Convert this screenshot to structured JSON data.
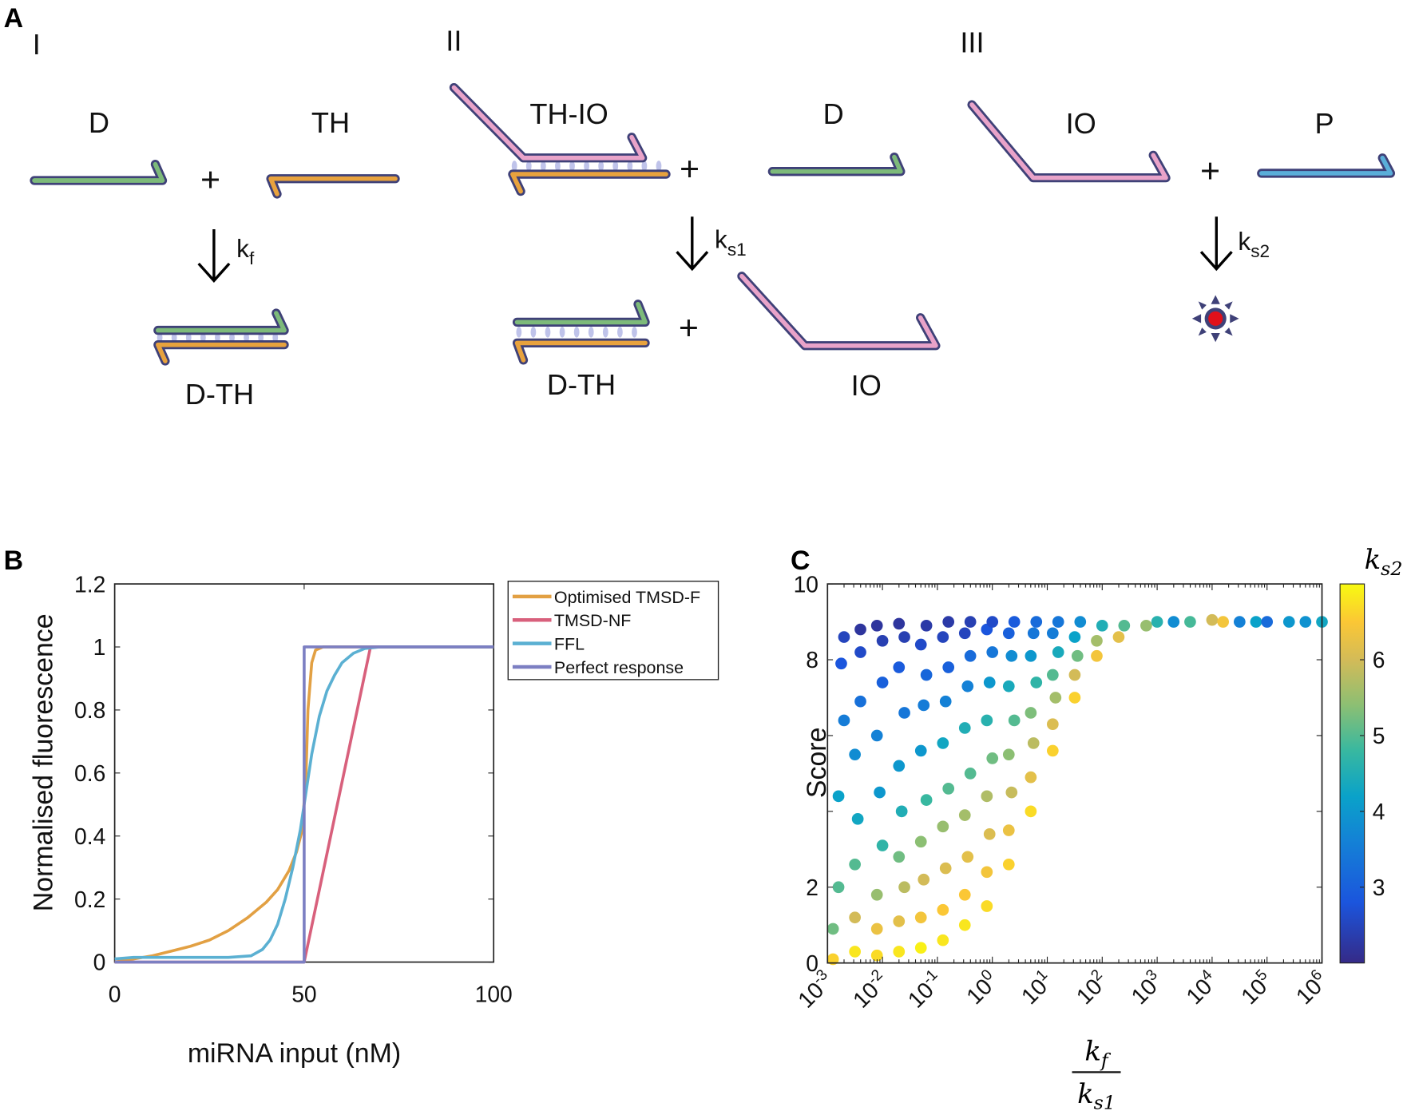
{
  "panels": {
    "a": "A",
    "b": "B",
    "c": "C"
  },
  "diagram": {
    "steps": [
      "I",
      "II",
      "III"
    ],
    "species": {
      "d1": "D",
      "th": "TH",
      "dth1": "D-TH",
      "thio": "TH-IO",
      "d2": "D",
      "io2": "IO",
      "dth2": "D-TH",
      "io3": "IO",
      "p": "P"
    },
    "plus": "+",
    "rates": [
      {
        "base": "k",
        "sub": "f"
      },
      {
        "base": "k",
        "sub": "s1"
      },
      {
        "base": "k",
        "sub": "s2"
      }
    ],
    "colors": {
      "outline": "#3f4178",
      "D": "#7dba7a",
      "TH": "#e8a23d",
      "IO": "#e9a3c9",
      "P": "#5aaed9",
      "pairs": "#bfc3ea",
      "reporter": "#e0101a"
    }
  },
  "chart_data": [
    {
      "type": "line",
      "panel": "B",
      "xlabel": "miRNA input (nM)",
      "ylabel": "Normalised fluorescence",
      "xlim": [
        0,
        100
      ],
      "ylim": [
        0,
        1.2
      ],
      "xticks": [
        "0",
        "50",
        "100"
      ],
      "xtick_values": [
        0,
        50,
        100
      ],
      "yticks": [
        "0",
        "0.2",
        "0.4",
        "0.6",
        "0.8",
        "1",
        "1.2"
      ],
      "ytick_values": [
        0,
        0.2,
        0.4,
        0.6,
        0.8,
        1,
        1.2
      ],
      "legend_position": "outside-top-right",
      "series": [
        {
          "name": "Optimised TMSD-F",
          "color": "#e2a043",
          "x": [
            0,
            5,
            10,
            15,
            20,
            25,
            30,
            35,
            40,
            43,
            46,
            48,
            49.5,
            50.5,
            51,
            52,
            53,
            55,
            100
          ],
          "y": [
            0,
            0.01,
            0.02,
            0.035,
            0.05,
            0.07,
            0.1,
            0.14,
            0.19,
            0.23,
            0.29,
            0.35,
            0.42,
            0.6,
            0.8,
            0.95,
            0.99,
            1,
            1
          ]
        },
        {
          "name": "TMSD-NF",
          "color": "#d8607c",
          "x": [
            0,
            50,
            67.5,
            100
          ],
          "y": [
            0,
            0,
            1,
            1
          ]
        },
        {
          "name": "FFL",
          "color": "#5bb0d2",
          "x": [
            0,
            5,
            10,
            20,
            30,
            36,
            39,
            41,
            43,
            45,
            47,
            49,
            50,
            52,
            54,
            56,
            58,
            60,
            63,
            66,
            70,
            100
          ],
          "y": [
            0.01,
            0.015,
            0.015,
            0.015,
            0.015,
            0.02,
            0.04,
            0.07,
            0.12,
            0.2,
            0.3,
            0.42,
            0.5,
            0.66,
            0.78,
            0.86,
            0.91,
            0.95,
            0.98,
            0.995,
            1,
            1
          ]
        },
        {
          "name": "Perfect response",
          "color": "#7c7fc2",
          "x": [
            0,
            50,
            50,
            100
          ],
          "y": [
            0,
            0,
            1,
            1
          ]
        }
      ]
    },
    {
      "type": "scatter",
      "panel": "C",
      "xlabel_num": {
        "base": "k",
        "sub": "f"
      },
      "xlabel_den": {
        "base": "k",
        "sub": "s1"
      },
      "ylabel": "Score",
      "xscale": "log",
      "xlim_log10": [
        -3,
        6
      ],
      "ylim": [
        0,
        10
      ],
      "xtick_base": "10",
      "xtick_exponents": [
        "-3",
        "-2",
        "-1",
        "0",
        "1",
        "2",
        "3",
        "4",
        "5",
        "6"
      ],
      "yticks": [
        "0",
        "2",
        "8",
        "10"
      ],
      "ytick_values": [
        0,
        2,
        8,
        10
      ],
      "yminor_ticks": [
        4,
        6
      ],
      "colorbar": {
        "label": {
          "base": "k",
          "sub": "s2"
        },
        "range": [
          2,
          7
        ],
        "ticks": [
          "3",
          "4",
          "5",
          "6"
        ],
        "tick_values": [
          3,
          4,
          5,
          6
        ],
        "colormap": [
          [
            2,
            "#352a87"
          ],
          [
            2.8,
            "#1b55dd"
          ],
          [
            3.6,
            "#1481d6"
          ],
          [
            4.2,
            "#0aa2c9"
          ],
          [
            4.8,
            "#38b8a0"
          ],
          [
            5.4,
            "#8cbf73"
          ],
          [
            6.0,
            "#d3bb58"
          ],
          [
            6.5,
            "#fbc735"
          ],
          [
            7,
            "#f8fa10"
          ]
        ]
      },
      "point_fields": [
        "log10_kf_over_ks1",
        "score",
        "ks2"
      ],
      "points": [
        [
          -2.9,
          0.1,
          6.6
        ],
        [
          -2.9,
          0.9,
          5.2
        ],
        [
          -2.8,
          2.0,
          5.0
        ],
        [
          -2.8,
          4.4,
          4.2
        ],
        [
          -2.7,
          8.6,
          2.5
        ],
        [
          -2.7,
          6.4,
          3.5
        ],
        [
          -2.75,
          7.9,
          2.8
        ],
        [
          -2.5,
          0.3,
          6.8
        ],
        [
          -2.5,
          1.2,
          6.0
        ],
        [
          -2.5,
          2.6,
          5.0
        ],
        [
          -2.45,
          3.8,
          4.3
        ],
        [
          -2.5,
          5.5,
          3.8
        ],
        [
          -2.4,
          6.9,
          3.3
        ],
        [
          -2.4,
          8.2,
          2.6
        ],
        [
          -2.4,
          8.8,
          2.2
        ],
        [
          -2.1,
          0.2,
          6.7
        ],
        [
          -2.1,
          0.9,
          6.3
        ],
        [
          -2.1,
          1.8,
          5.5
        ],
        [
          -2.0,
          3.1,
          4.7
        ],
        [
          -2.05,
          4.5,
          4.0
        ],
        [
          -2.1,
          6.0,
          3.6
        ],
        [
          -2.0,
          7.4,
          3.0
        ],
        [
          -2.0,
          8.5,
          2.4
        ],
        [
          -2.1,
          8.9,
          2.2
        ],
        [
          -1.7,
          0.3,
          6.8
        ],
        [
          -1.7,
          1.1,
          6.2
        ],
        [
          -1.6,
          2.0,
          5.8
        ],
        [
          -1.7,
          2.8,
          5.2
        ],
        [
          -1.65,
          4.0,
          4.5
        ],
        [
          -1.7,
          5.2,
          4.0
        ],
        [
          -1.6,
          6.6,
          3.4
        ],
        [
          -1.7,
          7.8,
          2.9
        ],
        [
          -1.6,
          8.6,
          2.4
        ],
        [
          -1.7,
          8.95,
          2.2
        ],
        [
          -1.3,
          0.4,
          6.9
        ],
        [
          -1.3,
          1.2,
          6.4
        ],
        [
          -1.25,
          2.2,
          6.0
        ],
        [
          -1.3,
          3.2,
          5.4
        ],
        [
          -1.2,
          4.3,
          4.8
        ],
        [
          -1.3,
          5.6,
          4.0
        ],
        [
          -1.25,
          6.8,
          3.5
        ],
        [
          -1.2,
          7.6,
          3.1
        ],
        [
          -1.3,
          8.4,
          2.6
        ],
        [
          -1.2,
          8.9,
          2.3
        ],
        [
          -0.9,
          0.6,
          6.8
        ],
        [
          -0.9,
          1.4,
          6.5
        ],
        [
          -0.85,
          2.5,
          6.1
        ],
        [
          -0.9,
          3.6,
          5.5
        ],
        [
          -0.8,
          4.6,
          5.0
        ],
        [
          -0.9,
          5.8,
          4.3
        ],
        [
          -0.85,
          6.9,
          3.6
        ],
        [
          -0.8,
          7.8,
          3.0
        ],
        [
          -0.9,
          8.6,
          2.5
        ],
        [
          -0.8,
          9.0,
          2.3
        ],
        [
          -0.5,
          1.0,
          6.8
        ],
        [
          -0.5,
          1.8,
          6.5
        ],
        [
          -0.45,
          2.8,
          6.2
        ],
        [
          -0.5,
          3.9,
          5.6
        ],
        [
          -0.4,
          5.0,
          5.0
        ],
        [
          -0.5,
          6.2,
          4.5
        ],
        [
          -0.45,
          7.3,
          3.6
        ],
        [
          -0.4,
          8.1,
          3.2
        ],
        [
          -0.5,
          8.7,
          2.5
        ],
        [
          -0.4,
          9.0,
          2.4
        ],
        [
          -0.1,
          1.5,
          6.7
        ],
        [
          -0.1,
          2.4,
          6.4
        ],
        [
          -0.05,
          3.4,
          6.1
        ],
        [
          -0.1,
          4.4,
          5.7
        ],
        [
          0,
          5.4,
          5.2
        ],
        [
          -0.1,
          6.4,
          4.6
        ],
        [
          -0.05,
          7.4,
          4.0
        ],
        [
          0,
          8.2,
          3.4
        ],
        [
          -0.1,
          8.8,
          2.8
        ],
        [
          0,
          9.0,
          2.6
        ],
        [
          0.3,
          2.6,
          6.6
        ],
        [
          0.3,
          3.5,
          6.3
        ],
        [
          0.35,
          4.5,
          5.9
        ],
        [
          0.3,
          5.5,
          5.4
        ],
        [
          0.4,
          6.4,
          5.0
        ],
        [
          0.3,
          7.3,
          4.4
        ],
        [
          0.35,
          8.1,
          3.8
        ],
        [
          0.3,
          8.7,
          3.0
        ],
        [
          0.4,
          9.0,
          2.9
        ],
        [
          0.7,
          4.0,
          6.7
        ],
        [
          0.7,
          4.9,
          6.2
        ],
        [
          0.75,
          5.8,
          5.8
        ],
        [
          0.7,
          6.6,
          5.3
        ],
        [
          0.8,
          7.4,
          4.7
        ],
        [
          0.7,
          8.1,
          4.0
        ],
        [
          0.75,
          8.7,
          3.4
        ],
        [
          0.8,
          9.0,
          3.2
        ],
        [
          1.1,
          5.6,
          6.6
        ],
        [
          1.1,
          6.3,
          6.1
        ],
        [
          1.15,
          7.0,
          5.6
        ],
        [
          1.1,
          7.6,
          5.0
        ],
        [
          1.2,
          8.2,
          4.4
        ],
        [
          1.1,
          8.7,
          3.5
        ],
        [
          1.2,
          9.0,
          3.4
        ],
        [
          1.5,
          7.0,
          6.6
        ],
        [
          1.5,
          7.6,
          6.0
        ],
        [
          1.55,
          8.1,
          5.2
        ],
        [
          1.5,
          8.6,
          4.2
        ],
        [
          1.6,
          9.0,
          3.8
        ],
        [
          1.9,
          8.1,
          6.4
        ],
        [
          1.9,
          8.5,
          5.6
        ],
        [
          2.0,
          8.9,
          4.5
        ],
        [
          2.3,
          8.6,
          6.2
        ],
        [
          2.4,
          8.9,
          5.0
        ],
        [
          2.8,
          8.9,
          5.5
        ],
        [
          3.0,
          9.0,
          4.6
        ],
        [
          3.3,
          9.0,
          3.8
        ],
        [
          3.6,
          9.0,
          4.9
        ],
        [
          4.0,
          9.05,
          6.0
        ],
        [
          4.2,
          9.0,
          6.4
        ],
        [
          4.5,
          9.0,
          3.6
        ],
        [
          4.8,
          9.0,
          4.2
        ],
        [
          5.0,
          9.0,
          3.2
        ],
        [
          5.4,
          9.0,
          4.0
        ],
        [
          5.7,
          9.0,
          3.9
        ],
        [
          6.0,
          9.0,
          4.3
        ]
      ]
    }
  ]
}
